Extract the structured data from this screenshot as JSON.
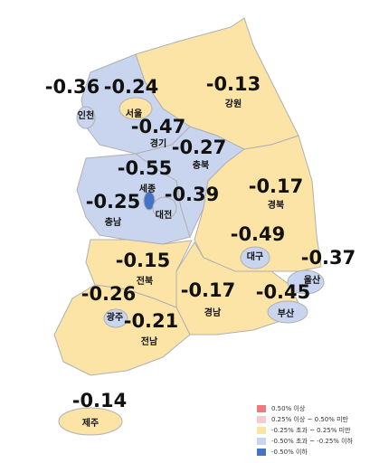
{
  "regions": [
    {
      "name": "인천",
      "value": -0.36,
      "color": "#c9d5ef"
    },
    {
      "name": "서울",
      "value": -0.24,
      "color": "#fbe4a6"
    },
    {
      "name": "경기",
      "value": -0.47,
      "color": "#c9d5ef"
    },
    {
      "name": "강원",
      "value": -0.13,
      "color": "#fbe4a6"
    },
    {
      "name": "충북",
      "value": -0.27,
      "color": "#c9d5ef"
    },
    {
      "name": "세종",
      "value": -0.55,
      "color": "#4472c4"
    },
    {
      "name": "대전",
      "value": -0.39,
      "color": "#c9d5ef"
    },
    {
      "name": "충남",
      "value": -0.25,
      "color": "#c9d5ef"
    },
    {
      "name": "경북",
      "value": -0.17,
      "color": "#fbe4a6"
    },
    {
      "name": "대구",
      "value": -0.49,
      "color": "#c9d5ef"
    },
    {
      "name": "울산",
      "value": -0.37,
      "color": "#c9d5ef"
    },
    {
      "name": "부산",
      "value": -0.45,
      "color": "#c9d5ef"
    },
    {
      "name": "경남",
      "value": -0.17,
      "color": "#fbe4a6"
    },
    {
      "name": "전북",
      "value": -0.15,
      "color": "#fbe4a6"
    },
    {
      "name": "광주",
      "value": -0.26,
      "color": "#c9d5ef"
    },
    {
      "name": "전남",
      "value": -0.21,
      "color": "#fbe4a6"
    },
    {
      "name": "제주",
      "value": -0.14,
      "color": "#fbe4a6"
    }
  ],
  "legend": [
    {
      "label": "0.50% 이상",
      "color": "#ee7b7b"
    },
    {
      "label": "0.25% 이상 ~ 0.50% 미만",
      "color": "#f8cccc"
    },
    {
      "label": "-0.25% 초과 ~ 0.25% 미만",
      "color": "#fbe4a6"
    },
    {
      "label": "-0.50% 초과 ~ -0.25% 이하",
      "color": "#c9d5ef"
    },
    {
      "label": "-0.50% 이하",
      "color": "#4472c4"
    }
  ]
}
